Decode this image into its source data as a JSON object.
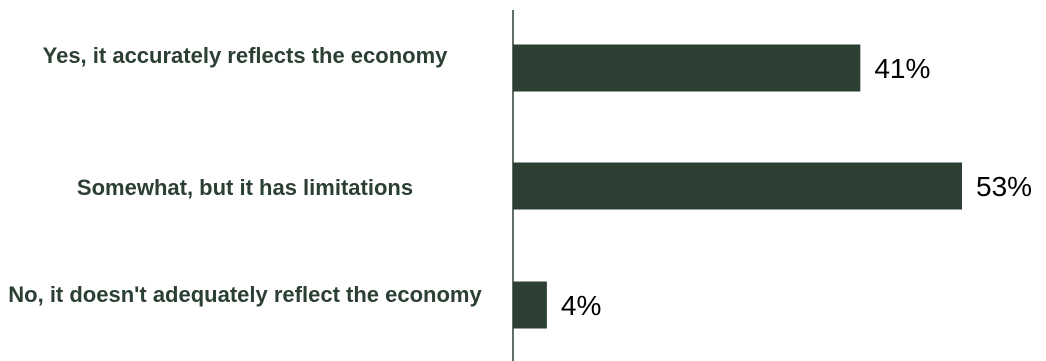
{
  "chart_data": {
    "type": "bar",
    "orientation": "horizontal",
    "categories": [
      "Yes, it accurately reflects the economy",
      "Somewhat, but it has limitations",
      "No, it doesn't adequately reflect the economy"
    ],
    "values": [
      41,
      53,
      4
    ],
    "value_labels": [
      "41%",
      "53%",
      "4%"
    ],
    "xlim": [
      0,
      53
    ],
    "grid": false,
    "legend": "none",
    "colors": {
      "bar": "#2b3f33",
      "axis": "#2b3f33",
      "category_text": "#2b3f33",
      "value_text": "#000000"
    }
  }
}
